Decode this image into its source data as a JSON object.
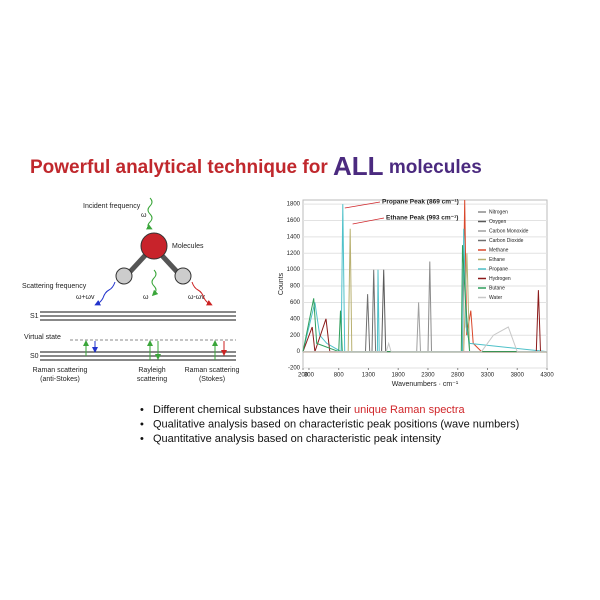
{
  "title": {
    "part1": "Powerful analytical technique for ",
    "part2": "ALL",
    "part3": " molecules"
  },
  "diagram": {
    "incident": "Incident frequency",
    "omega_in": "ω",
    "molecules": "Molecules",
    "scattering": "Scattering frequency",
    "anti_freq": "ω+ωv",
    "rayleigh_freq": "ω",
    "stokes_freq": "ω-ωv",
    "s1": "S1",
    "virtual": "Virtual state",
    "s0": "S0",
    "anti_label": [
      "Raman scattering",
      "(anti-Stokes)"
    ],
    "rayleigh_label": [
      "Rayleigh",
      "scattering"
    ],
    "stokes_label": [
      "Raman scattering",
      "(Stokes)"
    ]
  },
  "chart_data": {
    "type": "line",
    "xlabel": "Wavenumbers · cm⁻¹",
    "ylabel": "Counts",
    "xlim": [
      200,
      4300
    ],
    "xticks": [
      200,
      300,
      800,
      1300,
      1800,
      2300,
      2800,
      3300,
      3800,
      4300
    ],
    "ylim": [
      -200,
      1850
    ],
    "yticks": [
      -200,
      0,
      200,
      400,
      600,
      800,
      1000,
      1200,
      1400,
      1600,
      1800
    ],
    "grid": true,
    "legend": "top-right",
    "annotations": [
      "Propane Peak (869 cm⁻¹)",
      "Ethane Peak (993 cm⁻¹)"
    ],
    "series": [
      {
        "name": "Nitrogen",
        "color": "#8c8c8c",
        "x": [
          200,
          2300,
          2331,
          2360,
          4300
        ],
        "values": [
          0,
          0,
          1100,
          0,
          0
        ]
      },
      {
        "name": "Oxygen",
        "color": "#5a5a5a",
        "x": [
          200,
          1520,
          1556,
          1590,
          4300
        ],
        "values": [
          0,
          0,
          1000,
          0,
          0
        ]
      },
      {
        "name": "Carbon Monoxide",
        "color": "#a0a0a0",
        "x": [
          200,
          2110,
          2143,
          2175,
          4300
        ],
        "values": [
          0,
          0,
          600,
          0,
          0
        ]
      },
      {
        "name": "Carbon Dioxide",
        "color": "#707070",
        "x": [
          200,
          1250,
          1285,
          1320,
          1360,
          1388,
          1420,
          4300
        ],
        "values": [
          0,
          0,
          700,
          0,
          0,
          1000,
          0,
          0
        ]
      },
      {
        "name": "Methane",
        "color": "#d9472b",
        "x": [
          200,
          2880,
          2917,
          2950,
          3020,
          3060,
          3200,
          4300
        ],
        "values": [
          0,
          0,
          1850,
          200,
          500,
          100,
          0,
          0
        ]
      },
      {
        "name": "Ethane",
        "color": "#b8b070",
        "x": [
          200,
          960,
          993,
          1020,
          2900,
          2954,
          3000,
          4300
        ],
        "values": [
          0,
          0,
          1500,
          0,
          0,
          1200,
          0,
          0
        ]
      },
      {
        "name": "Propane",
        "color": "#4fc1c9",
        "x": [
          200,
          400,
          480,
          600,
          840,
          869,
          900,
          1450,
          1460,
          1480,
          2880,
          2900,
          2940,
          3000,
          4300
        ],
        "values": [
          0,
          600,
          200,
          100,
          0,
          1800,
          0,
          0,
          1000,
          0,
          0,
          1500,
          300,
          100,
          0
        ]
      },
      {
        "name": "Hydrogen",
        "color": "#8b1a1a",
        "x": [
          200,
          354,
          400,
          587,
          650,
          4120,
          4156,
          4190,
          4300
        ],
        "values": [
          0,
          300,
          0,
          400,
          0,
          0,
          750,
          0,
          0
        ]
      },
      {
        "name": "Butane",
        "color": "#2e9e5b",
        "x": [
          200,
          380,
          430,
          800,
          830,
          860,
          2860,
          2880,
          2930,
          3000,
          4300
        ],
        "values": [
          0,
          650,
          100,
          0,
          500,
          0,
          0,
          1300,
          600,
          0,
          0
        ]
      },
      {
        "name": "Water",
        "color": "#c8c8c8",
        "x": [
          200,
          1600,
          1640,
          1680,
          3200,
          3400,
          3650,
          3800,
          4300
        ],
        "values": [
          0,
          0,
          100,
          0,
          0,
          200,
          300,
          0,
          0
        ]
      }
    ]
  },
  "bullets": [
    [
      "Different chemical substances have their ",
      "unique Raman spectra"
    ],
    [
      "Qualitative analysis based on characteristic peak positions (wave numbers)"
    ],
    [
      "Quantitative analysis based on characteristic peak intensity"
    ]
  ]
}
